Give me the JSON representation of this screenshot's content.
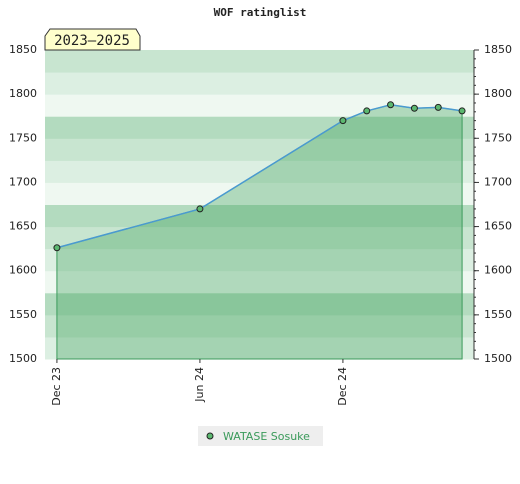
{
  "chart_data": {
    "type": "area",
    "title": "WOF ratinglist",
    "badge": "2023–2025",
    "x": [
      0,
      6,
      12,
      13,
      14,
      15,
      16,
      17
    ],
    "series": [
      {
        "name": "WATASE Sosuke",
        "color": "#4a9ad0",
        "values": [
          1626,
          1670,
          1770,
          1781,
          1788,
          1784,
          1785,
          1781
        ]
      }
    ],
    "xlim": [
      -0.5,
      17.5
    ],
    "xticks": [
      {
        "value": 0,
        "label": "Dec 23"
      },
      {
        "value": 6,
        "label": "Jun 24"
      },
      {
        "value": 12,
        "label": "Dec 24"
      }
    ],
    "ylim": [
      1500,
      1850
    ],
    "yticks": [
      1500,
      1550,
      1600,
      1650,
      1700,
      1750,
      1800,
      1850
    ],
    "legend": "bottom"
  }
}
